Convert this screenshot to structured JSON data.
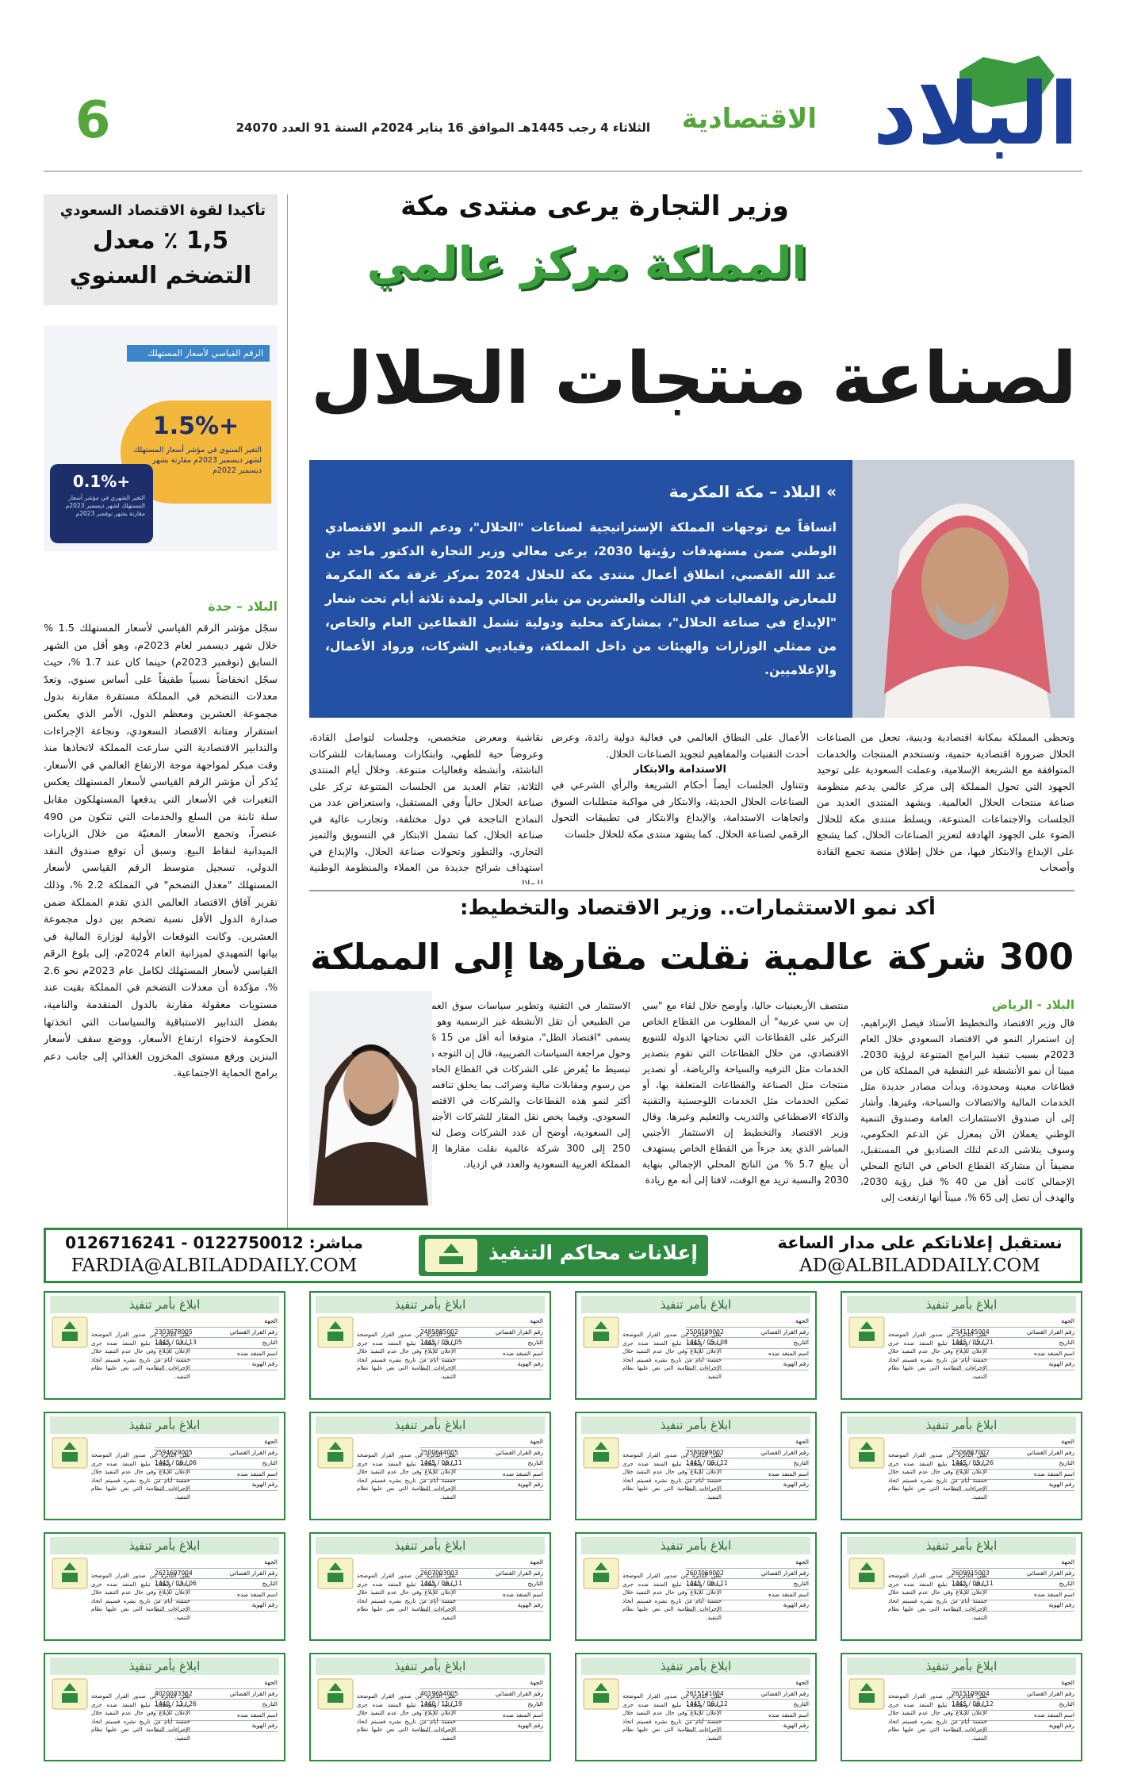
{
  "masthead": {
    "logo": "البلاد",
    "section": "الاقتصادية",
    "dateline": "الثلاثاء 4 رجب 1445هـ الموافق 16 يناير 2024م السنة 91 العدد 24070",
    "page_number": "6"
  },
  "main_story": {
    "kicker": "وزير التجارة يرعى منتدى مكة",
    "headline_1": "المملكة مركز عالمي",
    "headline_2": "لصناعة منتجات الحلال",
    "byline": "البلاد – مكة المكرمة",
    "lead": "اتساقاً مع توجهات المملكة الإستراتيجية لصناعات \"الحلال\"، ودعم النمو الاقتصادي الوطني ضمن مستهدفات رؤيتها 2030، يرعى معالي وزير التجارة الدكتور ماجد بن عبد الله القصبي، انطلاق أعمال منتدى مكة للحلال 2024 بمركز غرفة مكة المكرمة للمعارض والفعاليات في الثالث والعشرين من يناير الحالي ولمدة ثلاثة أيام تحت شعار \"الإبداع في صناعة الحلال\"، بمشاركة محلية ودولية تشمل القطاعين العام والخاص، من ممثلي الوزارات والهيئات من داخل المملكة، وقياديي الشركات، ورواد الأعمال، والإعلاميين.",
    "column_1": "وتحظى المملكة بمكانة اقتصادية ودينية، تجعل من الصناعات الحلال ضرورة اقتصادية حتمية، وتستخدم المنتجات والخدمات المتوافقة مع الشريعة الإسلامية، وعملت السعودية على توحيد الجهود التي تحول المملكة إلى مركز عالمي يدعم منظومة صناعة منتجات الحلال العالمية. ويشهد المنتدى العديد من الجلسات والاجتماعات المتنوعة، ويسلط منتدى مكة للحلال الضوء على الجهود الهادفة لتعزيز الصناعات الحلال، كما يشجع على الإبداع والابتكار فيها، من خلال إطلاق منصة تجمع القادة وأصحاب",
    "column_2a": "الأعمال على النطاق العالمي في فعالية دولية رائدة، وعرض أحدث التقنيات والمفاهيم لتجويد الصناعات الحلال.",
    "subhead": "الاستدامة والابتكار",
    "column_2b": "وتتناول الجلسات أيضاً أحكام الشريعة والرأي الشرعي في الصناعات الحلال الحديثة، والابتكار في مواكبة متطلبات السوق واتجاهات الاستدامة، والإبداع والابتكار في تطبيقات التحول الرقمي لصناعة الحلال. كما يشهد منتدى مكة للحلال جلسات",
    "column_3": "نقاشية ومعرض متخصص، وجلسات لتواصل القادة، وعروضاً حية للطهي، وابتكارات ومسابقات للشركات الناشئة، وأنشطة وفعاليات متنوعة. وخلال أيام المنتدى الثلاثة، تقام العديد من الجلسات المتنوعة تركز على صناعة الحلال حالياً وفي المستقبل، واستعراض عدد من النماذج الناجحة في دول مختلفة، وتجارب عالية في صناعة الحلال، كما تشمل الابتكار في التسويق والتميز التجاري، والتطور وتحولات صناعة الحلال، والإبداع في استهداف شرائح جديدة من العملاء والمنظومة الوطنية للحلال."
  },
  "sidebar": {
    "kicker": "تأكيدا لقوة الاقتصاد السعودي",
    "headline": "1,5 ٪ معدل التضخم السنوي",
    "infographic": {
      "title": "الرقم القياسي لأسعار المستهلك",
      "annual_value": "+1.5%",
      "annual_label": "التغير السنوي في مؤشر أسعار المستهلك لشهر ديسمبر 2023م مقارنة بشهر ديسمبر 2022م",
      "monthly_value": "+0.1%",
      "monthly_label": "التغير الشهري في مؤشر أسعار المستهلك لشهر ديسمبر 2023م مقارنة بشهر نوفمبر 2023م"
    },
    "byline": "البلاد – جدة",
    "body": "سجّل مؤشر الرقم القياسي لأسعار المستهلك 1.5 % خلال شهر ديسمبر لعام 2023م، وهو أقل من الشهر السابق (نوفمبر 2023م) حينما كان عند 1.7 %، حيث سجّل انخفاضاً نسبياً طفيفاً على أساس سنوي. وتعدّ معدلات التضخم في المملكة مستقرة مقارنة بدول مجموعة العشرين ومعظم الدول، الأمر الذي يعكس استقرار ومتانة الاقتصاد السعودي، ونجاعة الإجراءات والتدابير الاقتصادية التي سارعت المملكة لاتخاذها منذ وقت مبكر لمواجهة موجة الارتفاع العالمي في الأسعار. يُذكر أن مؤشر الرقم القياسي لأسعار المستهلك يعكس التغيرات في الأسعار التي يدفعها المستهلكون مقابل سلة ثابتة من السلع والخدمات التي تتكون من 490 عنصراً، وتجمع الأسعار المعنيّة من خلال الزيارات الميدانية لنقاط البيع. وسبق أن توقع صندوق النقد الدولي، تسجيل متوسط الرقم القياسي لأسعار المستهلك \"معدل التضخم\" في المملكة 2.2 %، وذلك تقرير آفاق الاقتصاد العالمي الذي تقدم المملكة ضمن صدارة الدول الأقل نسبة تضخم بين دول مجموعة العشرين. وكانت التوقعات الأولية لوزارة المالية في بيانها التمهيدي لميزانية العام 2024م، إلى بلوغ الرقم القياسي لأسعار المستهلك لكامل عام 2023م نحو 2.6 %، مؤكدة أن معدلات التضخم في المملكة بقيت عند مستويات معقولة مقارنة بالدول المتقدمة والنامية، بفضل التدابير الاستباقية والسياسات التي اتخذتها الحكومة لاحتواء ارتفاع الأسعار، ووضع سقف لأسعار البنزين ورفع مستوى المخزون الغذائي إلى جانب دعم برامج الحماية الاجتماعية."
  },
  "second_story": {
    "kicker": "أكد نمو الاستثمارات.. وزير الاقتصاد والتخطيط:",
    "headline": "300 شركة عالمية نقلت مقارها إلى المملكة",
    "byline": "البلاد - الرياض",
    "column_1": "قال وزير الاقتصاد والتخطيط الأستاذ فيصل الإبراهيم، إن استمرار النمو في الاقتصاد السعودي خلال العام 2023م بسبب تنفيذ البرامج المتنوعة لرؤية 2030، مبينا أن نمو الأنشطة غير النفطية في المملكة كان من قطاعات معينة ومحدودة، وبدأت مصادر جديدة مثل الخدمات المالية والاتصالات والسياحة، وغيرها. وأشار إلى أن صندوق الاستثمارات العامة وصندوق التنمية الوطني يعملان الآن بمعزل عن الدعم الحكومي، وسوف يتلاشى الدعم لتلك الصناديق في المستقبل، مضيفاً أن مشاركة القطاع الخاص في الناتج المحلي الإجمالي كانت أقل من 40 % قبل رؤية 2030، والهدف أن تصل إلى 65 %، مبيناً أنها ارتفعت إلى",
    "column_2": "منتصف الأربعينيات حاليا، وأوضح خلال لقاء مع \"سي إن بي سي عربية\" أن المطلوب من القطاع الخاص التركيز على القطاعات التي تحتاجها الدولة للتنويع الاقتصادي، من خلال القطاعات التي تقوم بتصدير الخدمات مثل الترفيه والسياحة والرياضة، أو تصدير منتجات مثل الصناعة والقطاعات المتعلقة بها، أو تمكين الخدمات مثل الخدمات اللوجستية والتقنية والذكاء الاصطناعي والتدريب والتعليم وغيرها. وقال وزير الاقتصاد والتخطيط إن الاستثمار الأجنبي المباشر الذي يعد جزءاً من القطاع الخاص يستهدف أن يبلغ 5.7 % من الناتج المحلي الإجمالي بنهاية 2030 والنسبة تزيد مع الوقت، لافتا إلى أنه مع زيادة",
    "column_3": "الاستثمار في التقنية وتطوير سياسات سوق العمل من الطبيعي أن تقل الأنشطة غير الرسمية وهو ما يسمى \"اقتصاد الظل\"، متوقعا أنه أقل من 15 %. وحول مراجعة السياسات الضريبية، قال إن التوجه هو تبسيط ما يُفرض على الشركات في القطاع الخاص من رسوم ومقابلات مالية وضرائب بما يخلق تنافسية أكثر لنمو هذه القطاعات والشركات في الاقتصاد السعودي. وفيما يخص نقل المقار للشركات الأجنبية إلى السعودية، أوضح أن عدد الشركات وصل لنحو 250 إلى 300 شركة عالمية نقلت مقارها إلى المملكة العربية السعودية والعدد في ازدياد."
  },
  "ads_banner": {
    "right_title": "نستقبل إعلاناتكم على مدار الساعة",
    "right_email": "AD@ALBILADDAILY.COM",
    "center_title": "إعلانات محاكم التنفيذ",
    "left_phone": "مباشر: 0122750012 - 0126716241",
    "left_email": "FARDIA@ALBILADDAILY.COM"
  },
  "notices": {
    "title": "ابلاغ بأمر تنفيذ",
    "body": "تعلن الدائرة عن صدور القرار الموضحة بياناته، وتطلب تبليغ المنفذ ضده جرى الإعلان للإبلاغ وفي حال عدم التنفيذ خلال خمسة أيام من تاريخ نشره فسيتم اتخاذ الإجراءات النظامية التي نص عليها نظام التنفيذ.",
    "labels": [
      "الجهة",
      "رقم القرار القضائي",
      "التاريخ",
      "اسم المنفذ ضده",
      "رقم الهوية"
    ],
    "items": [
      {
        "number": "2541145004",
        "date": "21 / 05 / 1445"
      },
      {
        "number": "2500199002",
        "date": "08 / 05 / 1445"
      },
      {
        "number": "2485885002",
        "date": "05 / 05 / 1445"
      },
      {
        "number": "2303678005",
        "date": "13 / 03 / 1445"
      },
      {
        "number": "2506867002",
        "date": "26 / 05 / 1445"
      },
      {
        "number": "2580099002",
        "date": "12 / 06 / 1445"
      },
      {
        "number": "2500644005",
        "date": "11 / 06 / 1445"
      },
      {
        "number": "2594629005",
        "date": "06 / 06 / 1445"
      },
      {
        "number": "2609915003",
        "date": "11 / 06 / 1445"
      },
      {
        "number": "2607069002",
        "date": "11 / 06 / 1445"
      },
      {
        "number": "2607003003",
        "date": "11 / 06 / 1445"
      },
      {
        "number": "2621697004",
        "date": "06 / 03 / 1445"
      },
      {
        "number": "2615109004",
        "date": "12 / 06 / 1445"
      },
      {
        "number": "2615141004",
        "date": "12 / 06 / 1445"
      },
      {
        "number": "4019654005",
        "date": "19 / 11 / 1440"
      },
      {
        "number": "4020033362",
        "date": "26 / 11 / 1440"
      }
    ]
  }
}
